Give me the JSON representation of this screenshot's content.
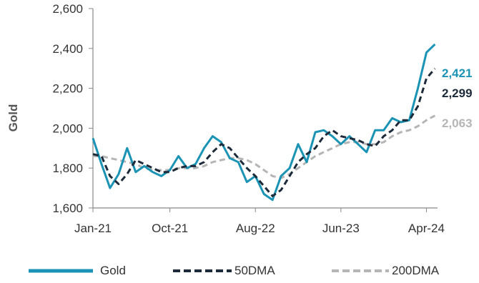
{
  "chart_data": {
    "type": "line",
    "title": "",
    "xlabel": "",
    "ylabel": "Gold",
    "ylim": [
      1600,
      2600
    ],
    "yticks": [
      "1,600",
      "1,800",
      "2,000",
      "2,200",
      "2,400",
      "2,600"
    ],
    "yticks_values": [
      1600,
      1800,
      2000,
      2200,
      2400,
      2600
    ],
    "xticks": [
      "Jan-21",
      "Oct-21",
      "Aug-22",
      "Jun-23",
      "Apr-24"
    ],
    "xticks_dates": [
      "2021-01",
      "2021-10",
      "2022-08",
      "2023-06",
      "2024-04"
    ],
    "x": [
      "2021-01",
      "2021-02",
      "2021-03",
      "2021-04",
      "2021-05",
      "2021-06",
      "2021-07",
      "2021-08",
      "2021-09",
      "2021-10",
      "2021-11",
      "2021-12",
      "2022-01",
      "2022-02",
      "2022-03",
      "2022-04",
      "2022-05",
      "2022-06",
      "2022-07",
      "2022-08",
      "2022-09",
      "2022-10",
      "2022-11",
      "2022-12",
      "2023-01",
      "2023-02",
      "2023-03",
      "2023-04",
      "2023-05",
      "2023-06",
      "2023-07",
      "2023-08",
      "2023-09",
      "2023-10",
      "2023-11",
      "2023-12",
      "2024-01",
      "2024-02",
      "2024-03",
      "2024-04",
      "2024-05"
    ],
    "series": [
      {
        "name": "Gold",
        "values": [
          1950,
          1820,
          1700,
          1770,
          1900,
          1780,
          1810,
          1780,
          1760,
          1790,
          1860,
          1800,
          1820,
          1900,
          1960,
          1930,
          1850,
          1830,
          1730,
          1760,
          1670,
          1640,
          1760,
          1800,
          1920,
          1830,
          1980,
          1990,
          1960,
          1920,
          1960,
          1920,
          1880,
          1990,
          1990,
          2050,
          2030,
          2040,
          2200,
          2380,
          2421
        ]
      },
      {
        "name": "50DMA",
        "values": [
          1870,
          1860,
          1760,
          1720,
          1770,
          1840,
          1820,
          1800,
          1780,
          1780,
          1800,
          1810,
          1810,
          1830,
          1880,
          1920,
          1900,
          1850,
          1800,
          1760,
          1710,
          1660,
          1690,
          1760,
          1830,
          1870,
          1900,
          1960,
          1990,
          1960,
          1950,
          1940,
          1920,
          1910,
          1960,
          1990,
          2040,
          2040,
          2110,
          2250,
          2299
        ]
      },
      {
        "name": "200DMA",
        "values": [
          1860,
          1860,
          1850,
          1840,
          1830,
          1820,
          1800,
          1790,
          1790,
          1790,
          1800,
          1800,
          1800,
          1810,
          1830,
          1840,
          1850,
          1850,
          1840,
          1820,
          1790,
          1760,
          1750,
          1770,
          1800,
          1830,
          1860,
          1880,
          1900,
          1920,
          1930,
          1930,
          1920,
          1920,
          1930,
          1960,
          1980,
          1990,
          2010,
          2040,
          2063
        ]
      }
    ],
    "last_labels": [
      "2,421",
      "2,299",
      "2,063"
    ],
    "legend_position": "bottom",
    "grid": false,
    "colors": {
      "Gold": "#1a93b5",
      "50DMA": "#1c2a3a",
      "200DMA": "#b5b5b5",
      "axis": "#888888"
    }
  },
  "legend": {
    "gold": "Gold",
    "dma50": "50DMA",
    "dma200": "200DMA"
  }
}
